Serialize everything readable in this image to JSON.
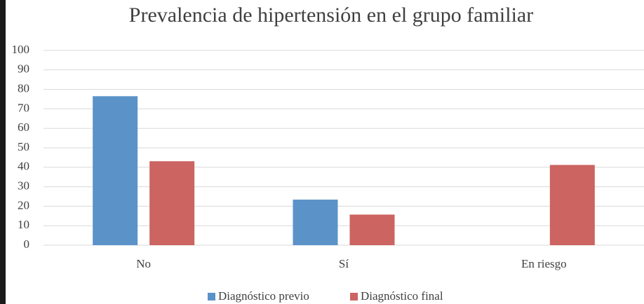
{
  "chart_data": {
    "type": "bar",
    "title": "Prevalencia de hipertensión en el grupo familiar",
    "categories": [
      "No",
      "Sí",
      "En riesgo"
    ],
    "series": [
      {
        "name": "Diagnóstico previo",
        "color": "#5b93c9",
        "values": [
          76.5,
          23.4,
          0
        ]
      },
      {
        "name": "Diagnóstico final",
        "color": "#cc6461",
        "values": [
          43.1,
          15.7,
          41.2
        ]
      }
    ],
    "ylim": [
      0,
      100
    ],
    "yticks": [
      0,
      10,
      20,
      30,
      40,
      50,
      60,
      70,
      80,
      90,
      100
    ],
    "grid": true,
    "legend": "bottom"
  }
}
